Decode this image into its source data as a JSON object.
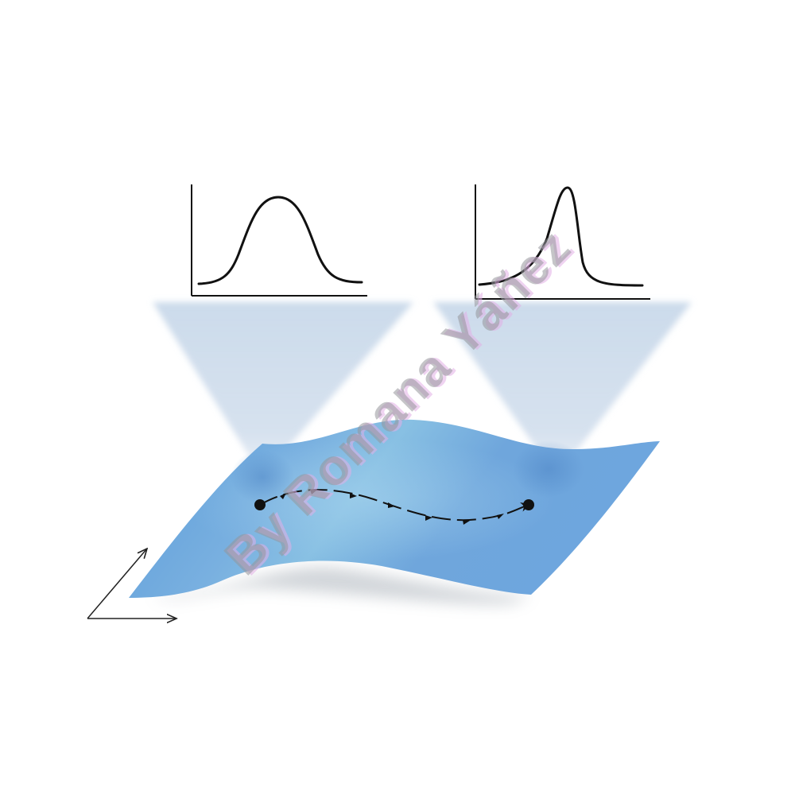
{
  "figure": {
    "surface_color": "#6fa6d9",
    "projection_color": "#c5d6e8",
    "curve_color": "#111111",
    "watermark_text": "By Romana Yáñez",
    "plots": [
      {
        "name": "symmetric-distribution",
        "shape": "symmetric bell curve"
      },
      {
        "name": "skewed-distribution",
        "shape": "right-peaked skewed curve"
      }
    ],
    "path": {
      "start_point": "left",
      "end_point": "right",
      "style": "dashed arrows"
    }
  }
}
